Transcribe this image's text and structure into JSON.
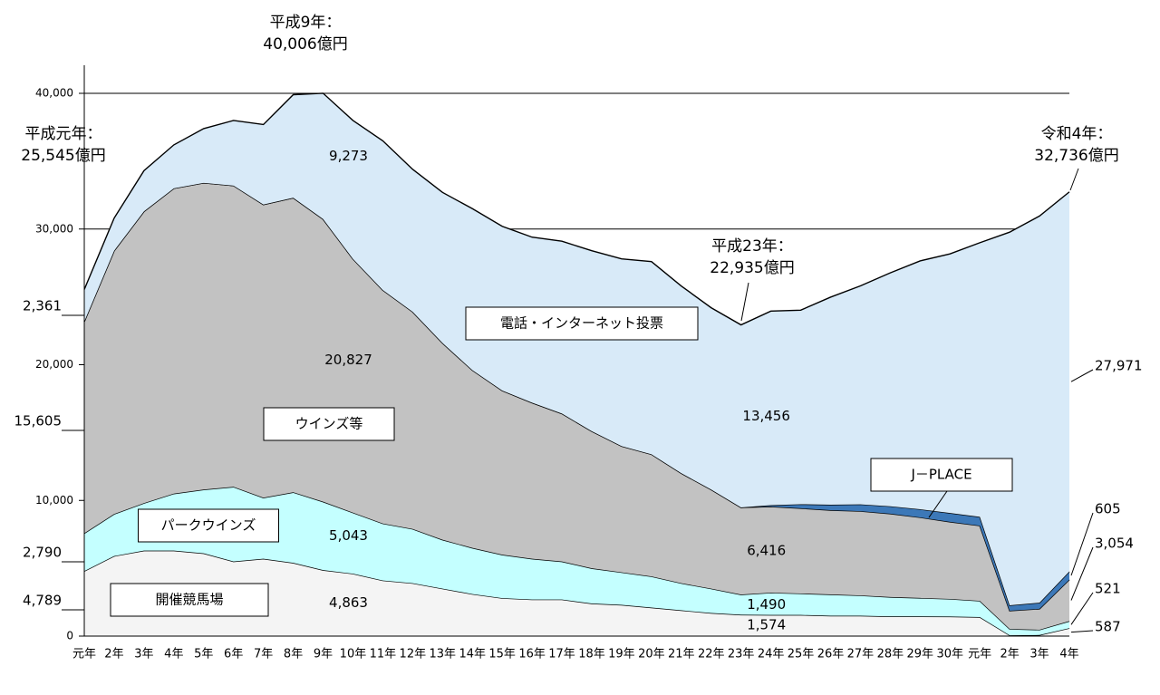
{
  "chart_data": {
    "type": "stacked-area",
    "categories": [
      "元年",
      "2年",
      "3年",
      "4年",
      "5年",
      "6年",
      "7年",
      "8年",
      "9年",
      "10年",
      "11年",
      "12年",
      "13年",
      "14年",
      "15年",
      "16年",
      "17年",
      "18年",
      "19年",
      "20年",
      "21年",
      "22年",
      "23年",
      "24年",
      "25年",
      "26年",
      "27年",
      "28年",
      "29年",
      "30年",
      "元年",
      "2年",
      "3年",
      "4年"
    ],
    "ylim": [
      0,
      40000
    ],
    "yticks": [
      0,
      {
        "value": 10000,
        "label": "10,000"
      },
      {
        "value": 20000,
        "label": "20,000"
      },
      {
        "value": 30000,
        "label": "30,000"
      },
      {
        "value": 40000,
        "label": "40,000"
      }
    ],
    "grid": true,
    "series": [
      {
        "name": "開催競馬場",
        "color": "#f4f4f4",
        "values": [
          4789,
          5900,
          6300,
          6300,
          6100,
          5500,
          5700,
          5400,
          4863,
          4600,
          4100,
          3900,
          3500,
          3100,
          2800,
          2700,
          2700,
          2400,
          2300,
          2100,
          1900,
          1700,
          1574,
          1560,
          1560,
          1500,
          1500,
          1450,
          1450,
          1440,
          1400,
          60,
          80,
          587
        ],
        "value_labels": [
          "4,789",
          null,
          null,
          null,
          null,
          null,
          null,
          null,
          "4,863",
          null,
          null,
          null,
          null,
          null,
          null,
          null,
          null,
          null,
          null,
          null,
          null,
          null,
          "1,574",
          null,
          null,
          null,
          null,
          null,
          null,
          null,
          null,
          null,
          null,
          "587"
        ]
      },
      {
        "name": "パークウインズ",
        "color": "#c4ffff",
        "values": [
          2790,
          3100,
          3500,
          4200,
          4700,
          5500,
          4500,
          5200,
          5043,
          4500,
          4200,
          4000,
          3600,
          3400,
          3200,
          3000,
          2800,
          2600,
          2400,
          2300,
          2000,
          1800,
          1490,
          1640,
          1580,
          1570,
          1500,
          1430,
          1360,
          1300,
          1200,
          470,
          390,
          521
        ],
        "value_labels": [
          "2,790",
          null,
          null,
          null,
          null,
          null,
          null,
          null,
          "5,043",
          null,
          null,
          null,
          null,
          null,
          null,
          null,
          null,
          null,
          null,
          null,
          null,
          null,
          "1,490",
          null,
          null,
          null,
          null,
          null,
          null,
          null,
          null,
          null,
          null,
          "521"
        ]
      },
      {
        "name": "ウインズ等",
        "color": "#c2c2c2",
        "values": [
          15605,
          19400,
          21500,
          22500,
          22600,
          22200,
          21600,
          21700,
          20827,
          18700,
          17200,
          16000,
          14500,
          13100,
          12100,
          11500,
          10900,
          10100,
          9300,
          9000,
          8100,
          7300,
          6416,
          6350,
          6280,
          6210,
          6210,
          6140,
          5940,
          5680,
          5540,
          1340,
          1540,
          3054
        ],
        "value_labels": [
          "15,605",
          null,
          null,
          null,
          null,
          null,
          null,
          null,
          "20,827",
          null,
          null,
          null,
          null,
          null,
          null,
          null,
          null,
          null,
          null,
          null,
          null,
          null,
          "6,416",
          null,
          null,
          null,
          null,
          null,
          null,
          null,
          null,
          null,
          null,
          "3,054"
        ]
      },
      {
        "name": "J－PLACE",
        "color": "#3c78b8",
        "values": [
          0,
          0,
          0,
          0,
          0,
          0,
          0,
          0,
          0,
          0,
          0,
          0,
          0,
          0,
          0,
          0,
          0,
          0,
          0,
          0,
          0,
          0,
          0,
          100,
          300,
          400,
          500,
          550,
          600,
          650,
          650,
          400,
          450,
          605
        ],
        "value_labels": [
          null,
          null,
          null,
          null,
          null,
          null,
          null,
          null,
          null,
          null,
          null,
          null,
          null,
          null,
          null,
          null,
          null,
          null,
          null,
          null,
          null,
          null,
          null,
          null,
          null,
          null,
          null,
          null,
          null,
          null,
          null,
          null,
          null,
          "605"
        ]
      },
      {
        "name": "電話・インターネット投票",
        "color": "#d8eaf8",
        "values": [
          2361,
          2400,
          3000,
          3200,
          4000,
          4800,
          5900,
          7600,
          9273,
          10200,
          11000,
          10500,
          11100,
          11900,
          12100,
          12200,
          12700,
          13300,
          13800,
          14200,
          13800,
          13400,
          13456,
          14300,
          14300,
          15300,
          16100,
          17200,
          18300,
          19100,
          20200,
          27500,
          28500,
          27971
        ],
        "value_labels": [
          "2,361",
          null,
          null,
          null,
          null,
          null,
          null,
          null,
          "9,273",
          null,
          null,
          null,
          null,
          null,
          null,
          null,
          null,
          null,
          null,
          null,
          null,
          null,
          "13,456",
          null,
          null,
          null,
          null,
          null,
          null,
          null,
          null,
          null,
          null,
          "27,971"
        ]
      }
    ],
    "annotations": [
      {
        "lines": [
          "平成9年：",
          "40,006億円"
        ]
      },
      {
        "lines": [
          "平成元年：",
          "25,545億円"
        ]
      },
      {
        "lines": [
          "平成23年：",
          "22,935億円"
        ]
      },
      {
        "lines": [
          "令和4年：",
          "32,736億円"
        ]
      }
    ]
  }
}
